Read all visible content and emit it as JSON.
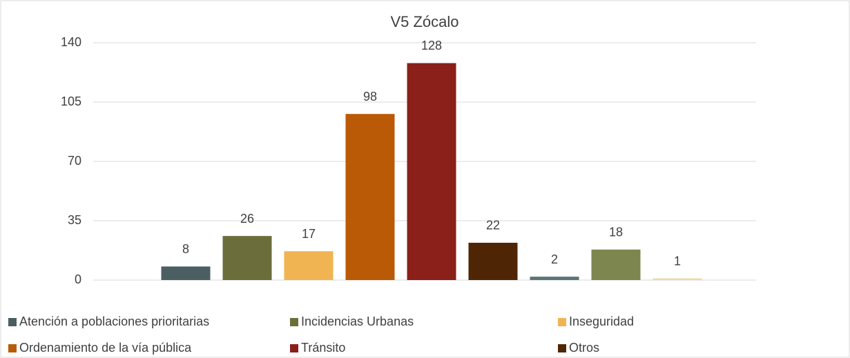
{
  "chart_data": {
    "type": "bar",
    "title": "V5 Zócalo",
    "categories": [
      null,
      null,
      null,
      null,
      null,
      null,
      null,
      null,
      null
    ],
    "values": [
      8,
      26,
      17,
      98,
      128,
      22,
      2,
      18,
      1
    ],
    "colors": [
      "#4b5f63",
      "#6b6e3a",
      "#f0b452",
      "#bb5a06",
      "#8b1f1a",
      "#4f2605",
      "#5c7579",
      "#7e8650",
      "#f4d7a6"
    ],
    "legend": [
      {
        "name": "Atención a poblaciones prioritarias",
        "color": "#4b5f63"
      },
      {
        "name": "Incidencias Urbanas",
        "color": "#6b6e3a"
      },
      {
        "name": "Inseguridad",
        "color": "#f0b452"
      },
      {
        "name": "Ordenamiento de la vía pública",
        "color": "#bb5a06"
      },
      {
        "name": "Tránsito",
        "color": "#8b1f1a"
      },
      {
        "name": "Otros",
        "color": "#4f2605"
      }
    ],
    "ylim": [
      0,
      140
    ],
    "yticks": [
      0,
      35,
      70,
      105,
      140
    ],
    "grid": true
  }
}
